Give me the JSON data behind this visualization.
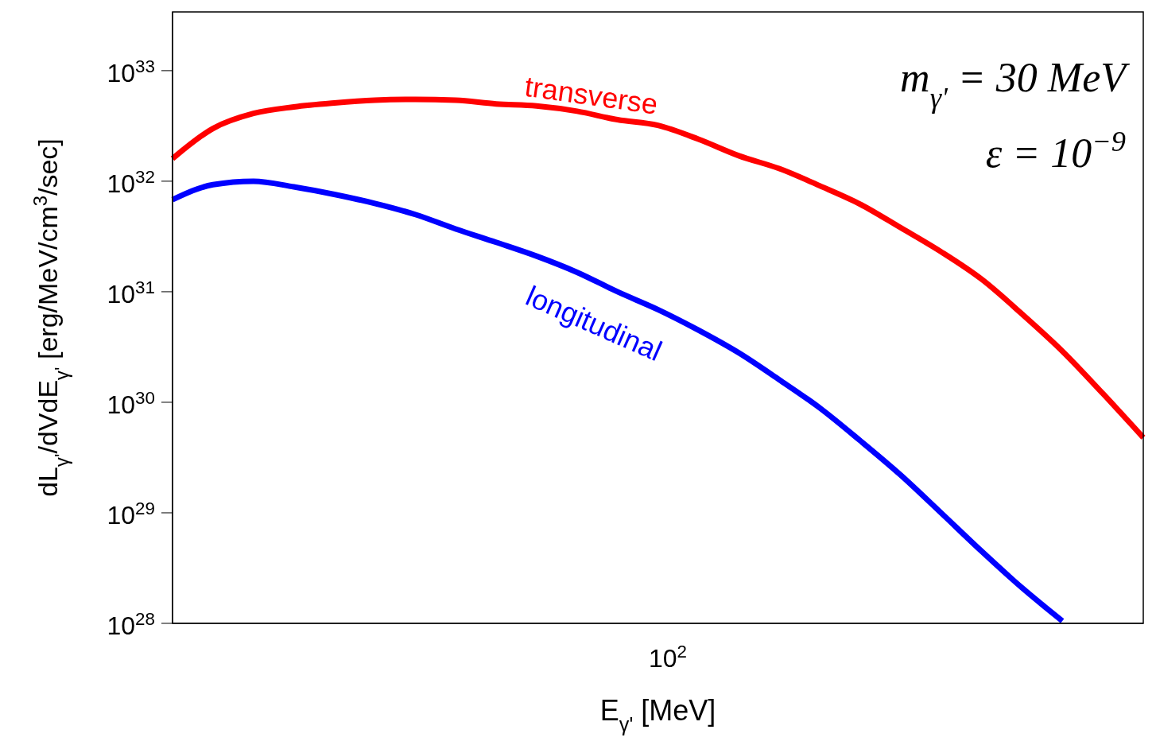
{
  "chart_data": {
    "type": "line",
    "xlabel": "E$_{γ'}$  [MeV]",
    "ylabel": "dL$_{γ'}$/dVdE$_{γ'}$  [erg/MeV/cm$^{3}$/sec]",
    "annotations": [
      "10$^{2}$",
      "m$_{γ'}$ = 30 MeV",
      "ε = 10$^{−9}$"
    ],
    "log": "y",
    "categories": [
      null,
      null,
      null,
      null,
      null,
      null,
      null,
      null,
      null,
      null,
      null,
      null,
      null,
      null,
      null,
      null,
      null,
      null,
      null,
      null,
      null,
      null,
      null,
      null,
      null
    ],
    "ylim": [
      1e+28,
      3.4e+33
    ],
    "yticks": [
      {
        "value": 1e+28,
        "label": "10$^{28}$"
      },
      {
        "value": 1e+29,
        "label": "10$^{29}$"
      },
      {
        "value": 1e+30,
        "label": "10$^{30}$"
      },
      {
        "value": 1e+31,
        "label": "10$^{31}$"
      },
      {
        "value": 1e+32,
        "label": "10$^{32}$"
      },
      {
        "value": 1e+33,
        "label": "10$^{33}$"
      }
    ],
    "grid": false,
    "legend": false,
    "marker": "none",
    "line_style": "solid",
    "series": [
      {
        "name": "transverse",
        "color": "#ff0000",
        "values": [
          1.6e+32,
          3e+32,
          4.1e+32,
          4.7e+32,
          5.1e+32,
          5.4e+32,
          5.5e+32,
          5.4e+32,
          5e+32,
          4.8e+32,
          4.3e+32,
          3.6e+32,
          3.2e+32,
          2.4e+32,
          1.7e+32,
          1.3e+32,
          9.1e+31,
          6.2e+31,
          3.8e+31,
          2.3e+31,
          1.3e+31,
          6.3e+30,
          2.9e+30,
          1.2e+30,
          4.8e+29
        ]
      },
      {
        "name": "longitudinal",
        "color": "#0000ff",
        "values": [
          6.8e+31,
          9.3e+31,
          1e+32,
          8.9e+31,
          7.6e+31,
          6.3e+31,
          5e+31,
          3.7e+31,
          2.8e+31,
          2.1e+31,
          1.5e+31,
          1e+31,
          6.9e+30,
          4.5e+30,
          2.8e+30,
          1.6e+30,
          8.9e+29,
          4.5e+29,
          2.2e+29,
          1e+29,
          4.5e+28,
          2.1e+28,
          1.05e+28,
          null,
          null
        ]
      }
    ]
  }
}
